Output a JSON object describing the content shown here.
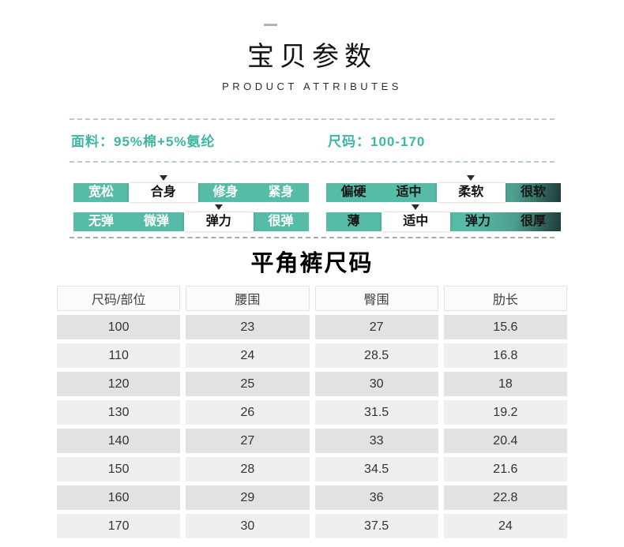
{
  "colors": {
    "accent_teal": "#56bba7",
    "accent_dark_edge": "#1e3b37",
    "info_text": "#3db6a2",
    "table_row_dark": "#e2e2e2",
    "table_row_light": "#efefef"
  },
  "header": {
    "title": "宝贝参数",
    "subtitle": "PRODUCT ATTRIBUTES"
  },
  "info": {
    "fabric": "面料：95%棉+5%氨纶",
    "size_range": "尺码：100-170"
  },
  "attributes": {
    "fit": {
      "options": [
        "宽松",
        "合身",
        "修身",
        "紧身"
      ],
      "selected_index": 1
    },
    "softness": {
      "options": [
        "偏硬",
        "适中",
        "柔软",
        "很软"
      ],
      "selected_index": 2
    },
    "elasticity": {
      "options": [
        "无弹",
        "微弹",
        "弹力",
        "很弹"
      ],
      "selected_index": 2
    },
    "thickness": {
      "options": [
        "薄",
        "适中",
        "弹力",
        "很厚"
      ],
      "selected_index": 1
    }
  },
  "size_table": {
    "title": "平角裤尺码",
    "headers": [
      "尺码/部位",
      "腰围",
      "臀围",
      "肋长"
    ],
    "rows": [
      [
        "100",
        "23",
        "27",
        "15.6"
      ],
      [
        "110",
        "24",
        "28.5",
        "16.8"
      ],
      [
        "120",
        "25",
        "30",
        "18"
      ],
      [
        "130",
        "26",
        "31.5",
        "19.2"
      ],
      [
        "140",
        "27",
        "33",
        "20.4"
      ],
      [
        "150",
        "28",
        "34.5",
        "21.6"
      ],
      [
        "160",
        "29",
        "36",
        "22.8"
      ],
      [
        "170",
        "30",
        "37.5",
        "24"
      ]
    ]
  }
}
